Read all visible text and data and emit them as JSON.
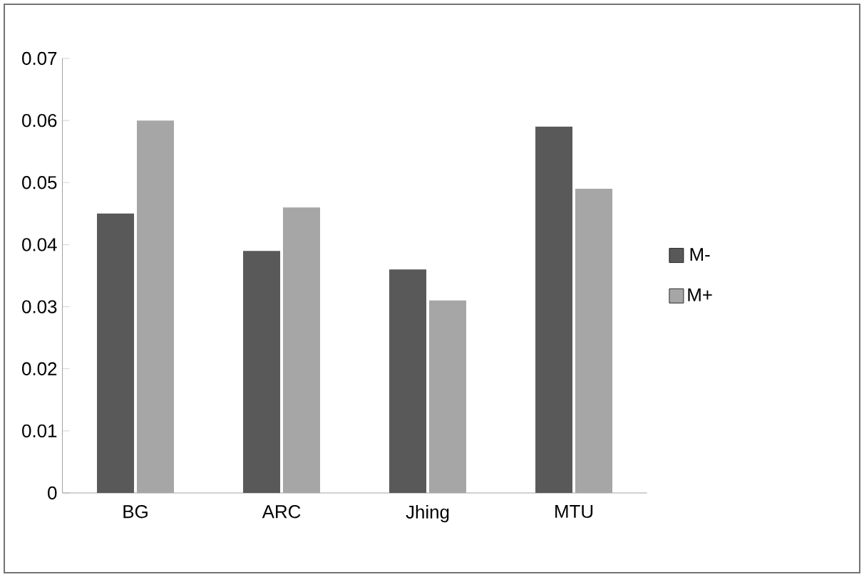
{
  "chart_data": {
    "type": "bar",
    "categories": [
      "BG",
      "ARC",
      "Jhing",
      "MTU"
    ],
    "series": [
      {
        "name": "M-",
        "color": "#595959",
        "values": [
          0.045,
          0.039,
          0.036,
          0.059
        ]
      },
      {
        "name": "M+",
        "color": "#a6a6a6",
        "values": [
          0.06,
          0.046,
          0.031,
          0.049
        ]
      }
    ],
    "ylim": [
      0,
      0.07
    ],
    "yticks": [
      0,
      0.01,
      0.02,
      0.03,
      0.04,
      0.05,
      0.06,
      0.07
    ],
    "grid": false,
    "legend": "right"
  }
}
